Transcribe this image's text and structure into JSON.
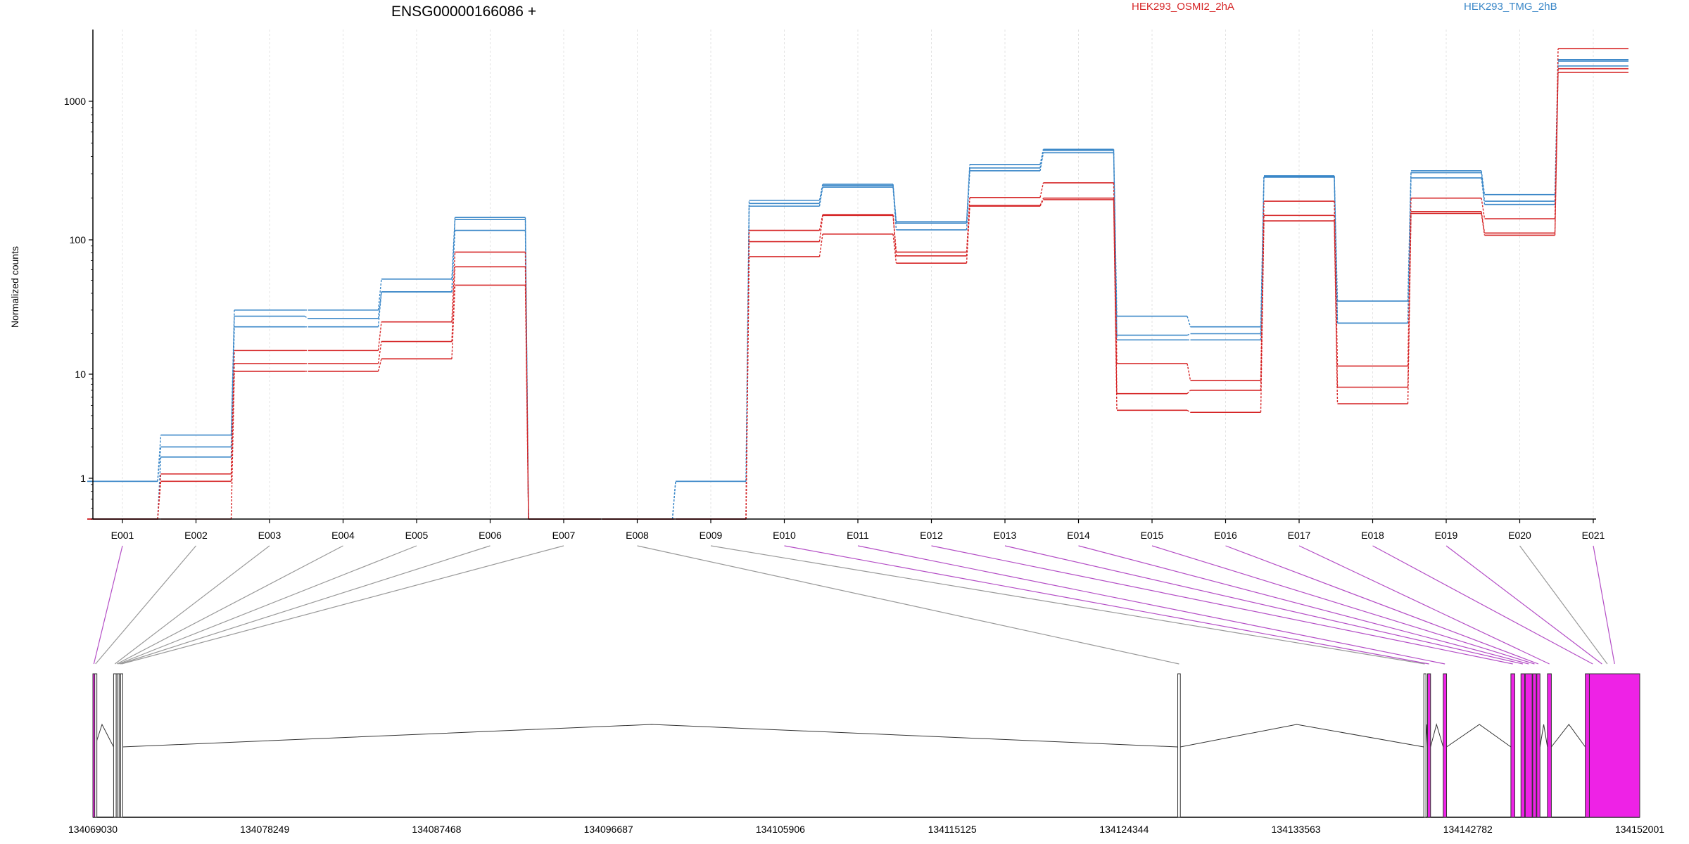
{
  "chart_data": {
    "type": "line",
    "title": "ENSG00000166086 +",
    "ylabel": "Normalized counts",
    "xlabel": "",
    "yscale": "log",
    "ylim": [
      0.48,
      3300
    ],
    "y_ticks": [
      {
        "value": 1,
        "label": "1"
      },
      {
        "value": 10,
        "label": "10"
      },
      {
        "value": 100,
        "label": "100"
      },
      {
        "value": 1000,
        "label": "1000"
      }
    ],
    "categories": [
      "E001",
      "E002",
      "E003",
      "E004",
      "E005",
      "E006",
      "E007",
      "E008",
      "E009",
      "E010",
      "E011",
      "E012",
      "E013",
      "E014",
      "E015",
      "E016",
      "E017",
      "E018",
      "E019",
      "E020",
      "E021"
    ],
    "grid": true,
    "legend_placement": "top",
    "legend": [
      {
        "name": "HEK293_OSMI2_2hA",
        "color": "#d62728"
      },
      {
        "name": "HEK293_TMG_2hB",
        "color": "#3a87c8"
      }
    ],
    "series": [
      {
        "group": "HEK293_TMG_2hB",
        "color": "#3a87c8",
        "values": [
          0.95,
          2.6,
          30,
          30,
          51,
          145,
          0.5,
          0.5,
          0.95,
          193,
          252,
          135,
          350,
          450,
          27,
          22.5,
          290,
          35,
          315,
          212,
          2000
        ]
      },
      {
        "group": "HEK293_TMG_2hB",
        "color": "#3a87c8",
        "values": [
          0.95,
          2.0,
          27,
          26,
          41,
          140,
          0.5,
          0.5,
          0.95,
          183,
          247,
          132,
          330,
          440,
          19.5,
          20,
          287,
          24,
          305,
          190,
          1950
        ]
      },
      {
        "group": "HEK293_TMG_2hB",
        "color": "#3a87c8",
        "values": [
          0.5,
          1.6,
          22.5,
          22.5,
          41,
          117,
          0.5,
          0.5,
          0.5,
          175,
          240,
          118,
          315,
          425,
          18,
          18,
          283,
          24,
          280,
          180,
          1800
        ]
      },
      {
        "group": "HEK293_OSMI2_2hA",
        "color": "#d62728",
        "values": [
          0.5,
          1.1,
          15,
          15,
          24.5,
          81,
          0.5,
          0.5,
          0.5,
          117,
          152,
          81,
          202,
          258,
          12,
          8.7,
          190,
          11.5,
          200,
          142,
          2400
        ]
      },
      {
        "group": "HEK293_OSMI2_2hA",
        "color": "#d62728",
        "values": [
          0.5,
          0.95,
          12,
          12,
          17.5,
          63,
          0.5,
          0.5,
          0.5,
          97,
          150,
          76,
          177,
          200,
          6.5,
          7.0,
          150,
          7.5,
          160,
          112,
          1720
        ]
      },
      {
        "group": "HEK293_OSMI2_2hA",
        "color": "#d62728",
        "values": [
          0.5,
          0.5,
          10.5,
          10.5,
          13,
          46,
          0.5,
          0.5,
          0.5,
          75,
          110,
          67,
          175,
          195,
          4.5,
          4.3,
          137,
          5.2,
          155,
          108,
          1620
        ]
      }
    ],
    "gene_model": {
      "coordinate_ticks": [
        "134069030",
        "134078249",
        "134087468",
        "134096687",
        "134105906",
        "134115125",
        "134124344",
        "134133563",
        "134142782",
        "134152001"
      ],
      "start": 134069030,
      "end": 134152001,
      "exons": [
        {
          "id": "E001",
          "start": 134069030,
          "end": 134069130,
          "tested": true
        },
        {
          "id": "E002",
          "start": 134069130,
          "end": 134069210,
          "tested": false
        },
        {
          "id": "E003",
          "start": 134070140,
          "end": 134070280,
          "tested": false
        },
        {
          "id": "E004",
          "start": 134070280,
          "end": 134070360,
          "tested": false
        },
        {
          "id": "E005",
          "start": 134070360,
          "end": 134070440,
          "tested": false
        },
        {
          "id": "E006",
          "start": 134070440,
          "end": 134070520,
          "tested": false
        },
        {
          "id": "E007",
          "start": 134070520,
          "end": 134070600,
          "tested": false
        },
        {
          "id": "E008",
          "start": 134127220,
          "end": 134127360,
          "tested": false
        },
        {
          "id": "E009",
          "start": 134140420,
          "end": 134140520,
          "tested": false
        },
        {
          "id": "E010",
          "start": 134140620,
          "end": 134140780,
          "tested": true
        },
        {
          "id": "E011",
          "start": 134141460,
          "end": 134141640,
          "tested": true
        },
        {
          "id": "E012",
          "start": 134145090,
          "end": 134145300,
          "tested": true
        },
        {
          "id": "E013",
          "start": 134145630,
          "end": 134145830,
          "tested": true
        },
        {
          "id": "E014",
          "start": 134145860,
          "end": 134146230,
          "tested": true
        },
        {
          "id": "E015",
          "start": 134146260,
          "end": 134146450,
          "tested": true
        },
        {
          "id": "E016",
          "start": 134146480,
          "end": 134146650,
          "tested": true
        },
        {
          "id": "E017",
          "start": 134147050,
          "end": 134147260,
          "tested": true
        },
        {
          "id": "E018",
          "start": 134149080,
          "end": 134149880,
          "tested": true
        },
        {
          "id": "E019",
          "start": 134149880,
          "end": 134150070,
          "tested": true
        },
        {
          "id": "E020",
          "start": 134150190,
          "end": 134150330,
          "tested": false
        },
        {
          "id": "E021",
          "start": 134149300,
          "end": 134152001,
          "tested": true
        }
      ]
    }
  }
}
